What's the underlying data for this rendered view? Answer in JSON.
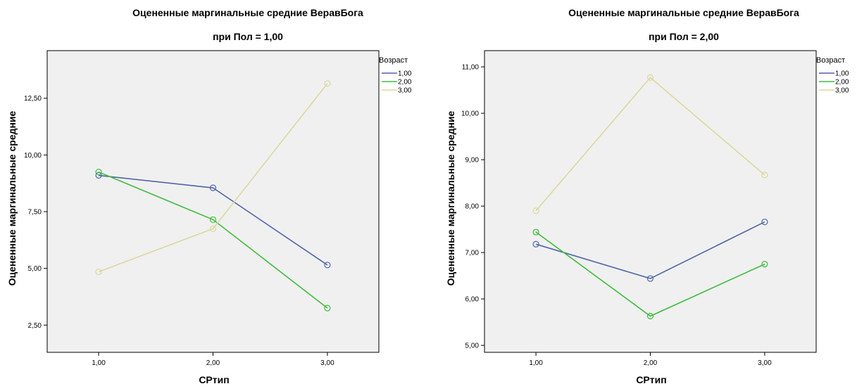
{
  "chart_data": [
    {
      "type": "line",
      "title": "Оцененные маргинальные средние ВеравБога",
      "subtitle": "при Пол = 1,00",
      "xlabel": "СРтип",
      "ylabel": "Оцененные маргинальные средние",
      "categories": [
        "1,00",
        "2,00",
        "3,00"
      ],
      "x": [
        1,
        2,
        3
      ],
      "xlim": [
        0.55,
        3.45
      ],
      "ylim": [
        1.3,
        14.6
      ],
      "yticks": [
        2.5,
        5.0,
        7.5,
        10.0,
        12.5
      ],
      "ytick_labels": [
        "2,50",
        "5,00",
        "7,50",
        "10,00",
        "12,50"
      ],
      "grid": false,
      "legend": {
        "title": "Возраст",
        "placement": "top-right"
      },
      "series": [
        {
          "name": "1,00",
          "color": "#5064a8",
          "values": [
            9.1,
            8.55,
            5.15
          ]
        },
        {
          "name": "2,00",
          "color": "#3dbe3c",
          "values": [
            9.25,
            7.15,
            3.25
          ]
        },
        {
          "name": "3,00",
          "color": "#dcd8a0",
          "values": [
            4.85,
            6.75,
            13.15
          ]
        }
      ]
    },
    {
      "type": "line",
      "title": "Оцененные маргинальные средние ВеравБога",
      "subtitle": "при Пол = 2,00",
      "xlabel": "СРтип",
      "ylabel": "Оцененные маргинальные средние",
      "categories": [
        "1,00",
        "2,00",
        "3,00"
      ],
      "x": [
        1,
        2,
        3
      ],
      "xlim": [
        0.55,
        3.45
      ],
      "ylim": [
        4.85,
        11.35
      ],
      "yticks": [
        5.0,
        6.0,
        7.0,
        8.0,
        9.0,
        10.0,
        11.0
      ],
      "ytick_labels": [
        "5,00",
        "6,00",
        "7,00",
        "8,00",
        "9,00",
        "10,00",
        "11,00"
      ],
      "grid": false,
      "legend": {
        "title": "Возраст",
        "placement": "top-right"
      },
      "series": [
        {
          "name": "1,00",
          "color": "#5064a8",
          "values": [
            7.18,
            6.44,
            7.66
          ]
        },
        {
          "name": "2,00",
          "color": "#3dbe3c",
          "values": [
            7.44,
            5.63,
            6.75
          ]
        },
        {
          "name": "3,00",
          "color": "#dcd8a0",
          "values": [
            7.9,
            10.77,
            8.67
          ]
        }
      ]
    }
  ],
  "style": {
    "plot_background": "#f0f0f0",
    "plot_border": "#000000"
  }
}
